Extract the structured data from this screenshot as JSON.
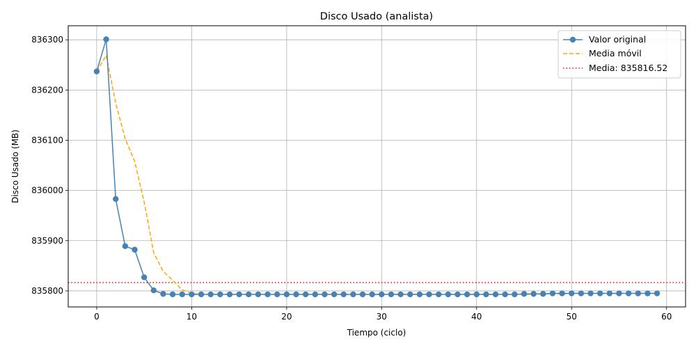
{
  "chart_data": {
    "type": "line",
    "title": "Disco Usado (analista)",
    "xlabel": "Tiempo (ciclo)",
    "ylabel": "Disco Usado (MB)",
    "xlim": [
      -3,
      62
    ],
    "ylim": [
      835768,
      836328
    ],
    "xticks": [
      0,
      10,
      20,
      30,
      40,
      50,
      60
    ],
    "yticks": [
      835800,
      835900,
      836000,
      836100,
      836200,
      836300
    ],
    "grid": true,
    "legend_position": "upper-right",
    "colors": {
      "original": "#4682b4",
      "moving": "#ffa500",
      "mean": "#ff0000"
    },
    "x": [
      0,
      1,
      2,
      3,
      4,
      5,
      6,
      7,
      8,
      9,
      10,
      11,
      12,
      13,
      14,
      15,
      16,
      17,
      18,
      19,
      20,
      21,
      22,
      23,
      24,
      25,
      26,
      27,
      28,
      29,
      30,
      31,
      32,
      33,
      34,
      35,
      36,
      37,
      38,
      39,
      40,
      41,
      42,
      43,
      44,
      45,
      46,
      47,
      48,
      49,
      50,
      51,
      52,
      53,
      54,
      55,
      56,
      57,
      58,
      59
    ],
    "series": [
      {
        "name": "Valor original",
        "style": "line-marker",
        "values": [
          836237,
          836301,
          835983,
          835889,
          835882,
          835827,
          835801,
          835794,
          835793,
          835793,
          835793,
          835793,
          835793,
          835793,
          835793,
          835793,
          835793,
          835793,
          835793,
          835793,
          835793,
          835793,
          835793,
          835793,
          835793,
          835793,
          835793,
          835793,
          835793,
          835793,
          835793,
          835793,
          835793,
          835793,
          835793,
          835793,
          835793,
          835793,
          835793,
          835793,
          835793,
          835793,
          835793,
          835793,
          835793,
          835794,
          835794,
          835794,
          835795,
          835795,
          835795,
          835795,
          835795,
          835795,
          835795,
          835795,
          835795,
          835795,
          835795,
          835795
        ]
      },
      {
        "name": "Media móvil",
        "style": "dashed",
        "values": [
          836237,
          836269,
          836174,
          836103,
          836058,
          835977,
          835876,
          835839,
          835821,
          835802,
          835795,
          835793,
          835793,
          835793,
          835793,
          835793,
          835793,
          835793,
          835793,
          835793,
          835793,
          835793,
          835793,
          835793,
          835793,
          835793,
          835793,
          835793,
          835793,
          835793,
          835793,
          835793,
          835793,
          835793,
          835793,
          835793,
          835793,
          835793,
          835793,
          835793,
          835793,
          835793,
          835793,
          835793,
          835793,
          835793,
          835793,
          835794,
          835794,
          835794,
          835795,
          835795,
          835795,
          835795,
          835795,
          835795,
          835795,
          835795,
          835795,
          835795
        ]
      }
    ],
    "hline": {
      "name": "Media: 835816.52",
      "value": 835816.52,
      "style": "dotted"
    }
  }
}
